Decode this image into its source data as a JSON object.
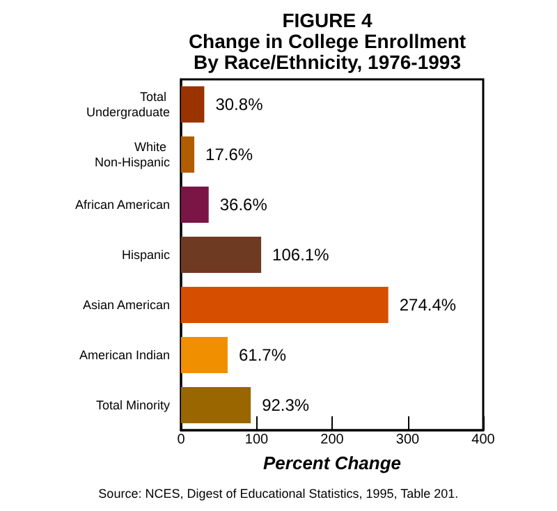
{
  "chart_data": {
    "type": "bar",
    "orientation": "horizontal",
    "title": "FIGURE 4\nChange in College Enrollment\nBy Race/Ethnicity, 1976-1993",
    "categories": [
      "Total Undergraduate",
      "White Non-Hispanic",
      "African American",
      "Hispanic",
      "Asian American",
      "American Indian",
      "Total Minority"
    ],
    "values": [
      30.8,
      17.6,
      36.6,
      106.1,
      274.4,
      61.7,
      92.3
    ],
    "colors": [
      "#9a3300",
      "#b05d00",
      "#7a1646",
      "#6e3a22",
      "#d64f00",
      "#f09000",
      "#9a6600"
    ],
    "value_labels": [
      "30.8%",
      "17.6%",
      "36.6%",
      "106.1%",
      "274.4%",
      "61.7%",
      "92.3%"
    ],
    "xlim": [
      0,
      400
    ],
    "xticks": [
      0,
      100,
      200,
      300,
      400
    ],
    "xlabel": "Percent Change",
    "grid": false,
    "annotations": [
      "Source: NCES, Digest of Educational Statistics, 1995, Table 201."
    ]
  }
}
